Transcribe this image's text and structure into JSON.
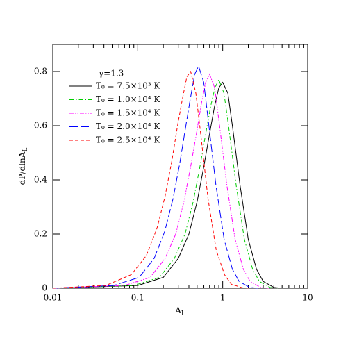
{
  "chart_data": {
    "type": "line",
    "x_label": "A_L",
    "y_label": "dP/dlnA_L",
    "annotation": "γ=1.3",
    "xlim": [
      0.01,
      10
    ],
    "xticks": [
      0.01,
      0.1,
      1,
      10
    ],
    "xscale": "log",
    "ylim": [
      0,
      0.9
    ],
    "yticks": [
      0,
      0.2,
      0.4,
      0.6,
      0.8
    ],
    "series": [
      {
        "name": "T₀ = 7.5×10³ K",
        "color": "#000000",
        "style": "solid",
        "x": [
          0.01,
          0.1,
          0.2,
          0.3,
          0.4,
          0.5,
          0.6,
          0.7,
          0.8,
          0.9,
          1.0,
          1.15,
          1.3,
          1.6,
          2,
          2.5,
          3,
          4,
          5
        ],
        "values": [
          0,
          0.01,
          0.04,
          0.11,
          0.2,
          0.32,
          0.45,
          0.57,
          0.67,
          0.74,
          0.76,
          0.72,
          0.6,
          0.38,
          0.18,
          0.07,
          0.025,
          0.003,
          0
        ]
      },
      {
        "name": "T₀ = 1.0×10⁴ K",
        "color": "#00cc00",
        "style": "dashdot",
        "x": [
          0.01,
          0.09,
          0.18,
          0.27,
          0.36,
          0.45,
          0.54,
          0.63,
          0.72,
          0.81,
          0.9,
          1.035,
          1.17,
          1.44,
          1.8,
          2.25,
          2.7,
          3.6,
          4.5
        ],
        "values": [
          0,
          0.01,
          0.04,
          0.11,
          0.2,
          0.32,
          0.45,
          0.57,
          0.67,
          0.74,
          0.77,
          0.72,
          0.6,
          0.38,
          0.18,
          0.07,
          0.025,
          0.003,
          0
        ]
      },
      {
        "name": "T₀ = 1.5×10⁴ K",
        "color": "#ff00ff",
        "style": "dashdotdot",
        "x": [
          0.01,
          0.07,
          0.14,
          0.21,
          0.28,
          0.35,
          0.42,
          0.49,
          0.56,
          0.63,
          0.7,
          0.805,
          0.91,
          1.12,
          1.4,
          1.75,
          2.1,
          2.8,
          3.5
        ],
        "values": [
          0,
          0.01,
          0.04,
          0.11,
          0.2,
          0.32,
          0.45,
          0.57,
          0.68,
          0.76,
          0.79,
          0.74,
          0.61,
          0.38,
          0.18,
          0.07,
          0.025,
          0.003,
          0
        ]
      },
      {
        "name": "T₀ = 2.0×10⁴ K",
        "color": "#0000ff",
        "style": "longdash",
        "x": [
          0.01,
          0.052,
          0.104,
          0.156,
          0.208,
          0.26,
          0.312,
          0.364,
          0.416,
          0.468,
          0.52,
          0.598,
          0.676,
          0.832,
          1.04,
          1.3,
          1.56,
          2.08,
          2.6
        ],
        "values": [
          0,
          0.01,
          0.04,
          0.11,
          0.21,
          0.33,
          0.46,
          0.59,
          0.7,
          0.79,
          0.82,
          0.76,
          0.62,
          0.38,
          0.18,
          0.07,
          0.025,
          0.003,
          0
        ]
      },
      {
        "name": "T₀ = 2.5×10⁴ K",
        "color": "#ff0000",
        "style": "dash",
        "x": [
          0.01,
          0.042,
          0.084,
          0.126,
          0.168,
          0.21,
          0.252,
          0.294,
          0.336,
          0.378,
          0.42,
          0.483,
          0.546,
          0.672,
          0.84,
          1.05,
          1.26,
          1.68,
          2.1
        ],
        "values": [
          0,
          0.01,
          0.05,
          0.12,
          0.22,
          0.34,
          0.47,
          0.6,
          0.7,
          0.78,
          0.8,
          0.72,
          0.58,
          0.33,
          0.14,
          0.05,
          0.015,
          0.002,
          0
        ]
      }
    ]
  }
}
